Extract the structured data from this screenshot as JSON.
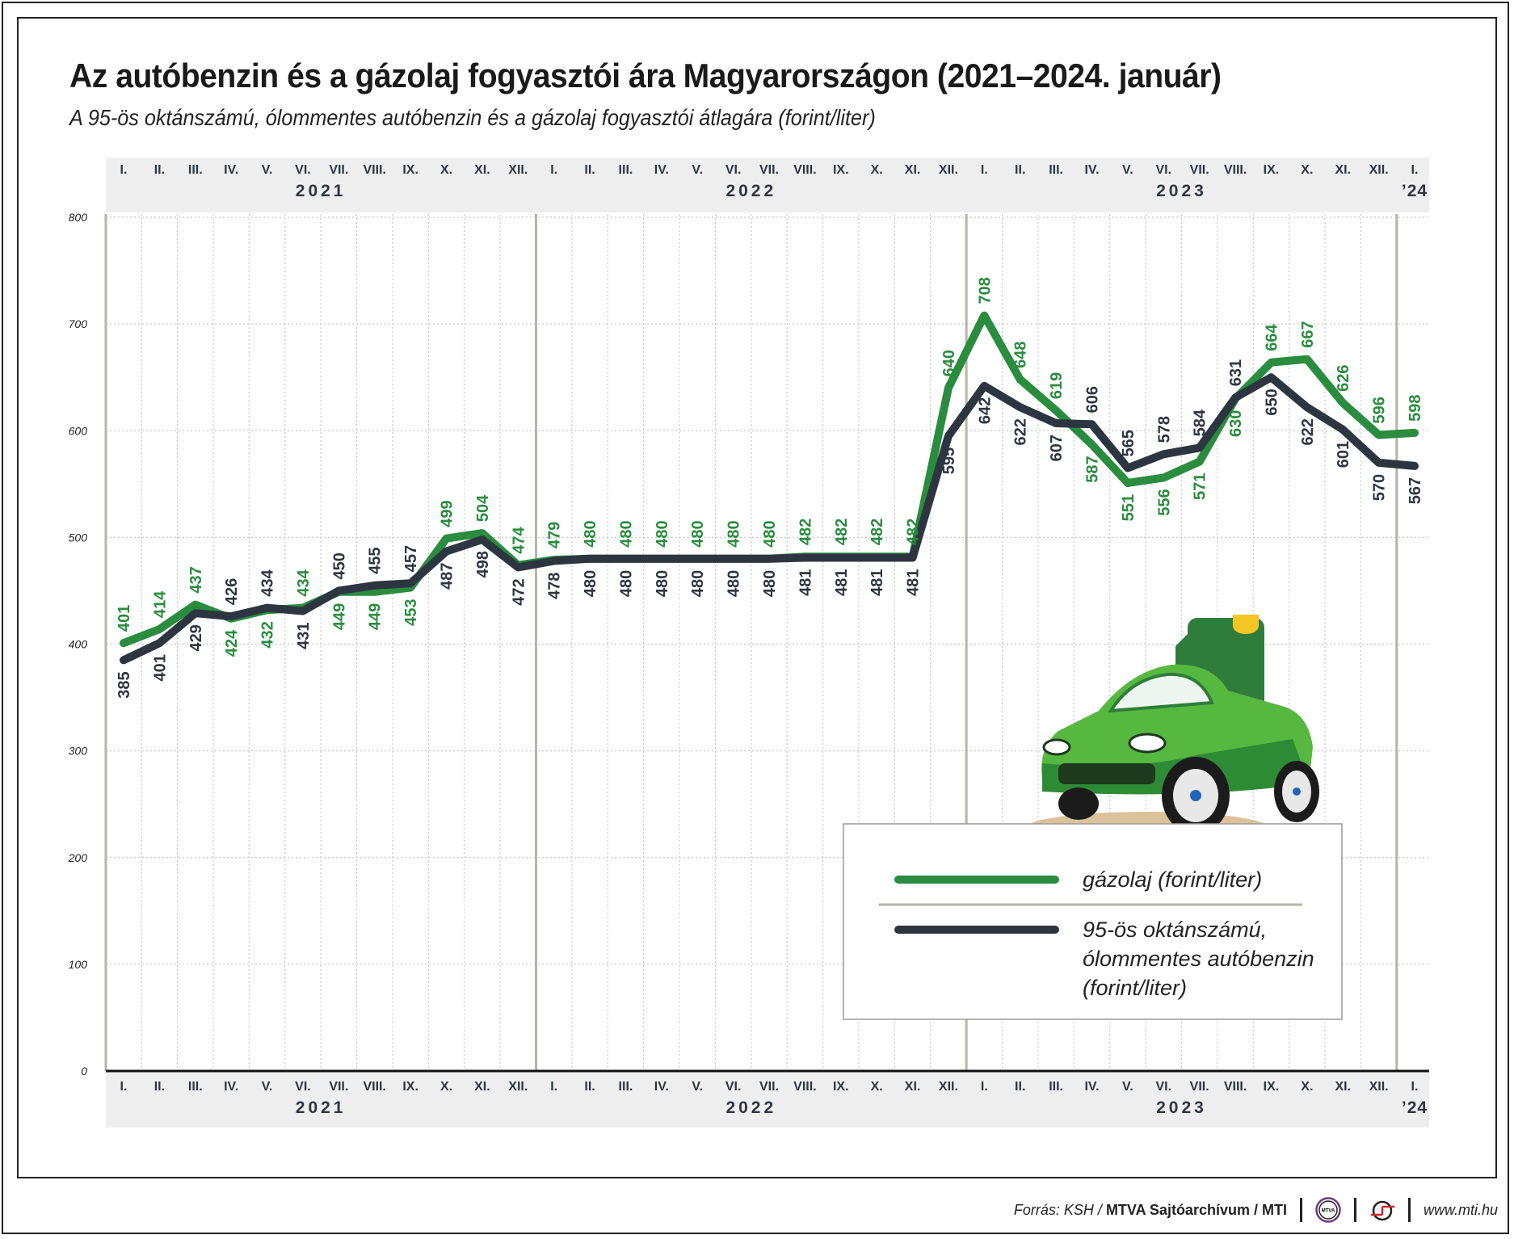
{
  "title": "Az autóbenzin és a gázolaj fogyasztói ára Magyarországon (2021–2024. január)",
  "subtitle": "A 95-ös oktánszámú, ólommentes autóbenzin és a gázolaj fogyasztói átlagára (forint/liter)",
  "chart_data": {
    "type": "line",
    "title": "Az autóbenzin és a gázolaj fogyasztói ára Magyarországon (2021–2024. január)",
    "x_months": [
      "I.",
      "II.",
      "III.",
      "IV.",
      "V.",
      "VI.",
      "VII.",
      "VIII.",
      "IX.",
      "X.",
      "XI.",
      "XII.",
      "I.",
      "II.",
      "III.",
      "IV.",
      "V.",
      "VI.",
      "VII.",
      "VIII.",
      "IX.",
      "X.",
      "XI.",
      "XII.",
      "I.",
      "II.",
      "III.",
      "IV.",
      "V.",
      "VI.",
      "VII.",
      "VIII.",
      "IX.",
      "X.",
      "XI.",
      "XII.",
      "I."
    ],
    "x_years": [
      {
        "label": "2021",
        "from": 0,
        "to": 11
      },
      {
        "label": "2022",
        "from": 12,
        "to": 23
      },
      {
        "label": "2023",
        "from": 24,
        "to": 35
      },
      {
        "label": "’24",
        "from": 36,
        "to": 36
      }
    ],
    "yticks": [
      0,
      100,
      200,
      300,
      400,
      500,
      600,
      700,
      800
    ],
    "ylim": [
      0,
      800
    ],
    "grid": true,
    "legend_position": "bottom-right",
    "series": [
      {
        "name": "gázolaj (forint/liter)",
        "color": "#2a8c3e",
        "values": [
          401,
          414,
          437,
          424,
          432,
          434,
          449,
          449,
          453,
          499,
          504,
          474,
          479,
          480,
          480,
          480,
          480,
          480,
          480,
          482,
          482,
          482,
          482,
          640,
          708,
          648,
          619,
          587,
          551,
          556,
          571,
          630,
          664,
          667,
          626,
          596,
          598
        ]
      },
      {
        "name": "95-ös oktánszámú, ólommentes autóbenzin (forint/liter)",
        "color": "#2d3640",
        "values": [
          385,
          401,
          429,
          426,
          434,
          431,
          450,
          455,
          457,
          487,
          498,
          472,
          478,
          480,
          480,
          480,
          480,
          480,
          480,
          481,
          481,
          481,
          481,
          595,
          642,
          622,
          607,
          606,
          565,
          578,
          584,
          631,
          650,
          622,
          601,
          570,
          567
        ]
      }
    ]
  },
  "legend": {
    "diesel_label": "gázolaj (forint/liter)",
    "petrol_lines": [
      "95-ös oktánszámú,",
      "ólommentes autóbenzin",
      "(forint/liter)"
    ]
  },
  "footer": {
    "source_prefix": "Forrás: KSH / ",
    "source_bold": "MTVA Sajtóarchívum / MTI",
    "mtva_logo_text": "MTVA",
    "site": "www.mti.hu"
  }
}
